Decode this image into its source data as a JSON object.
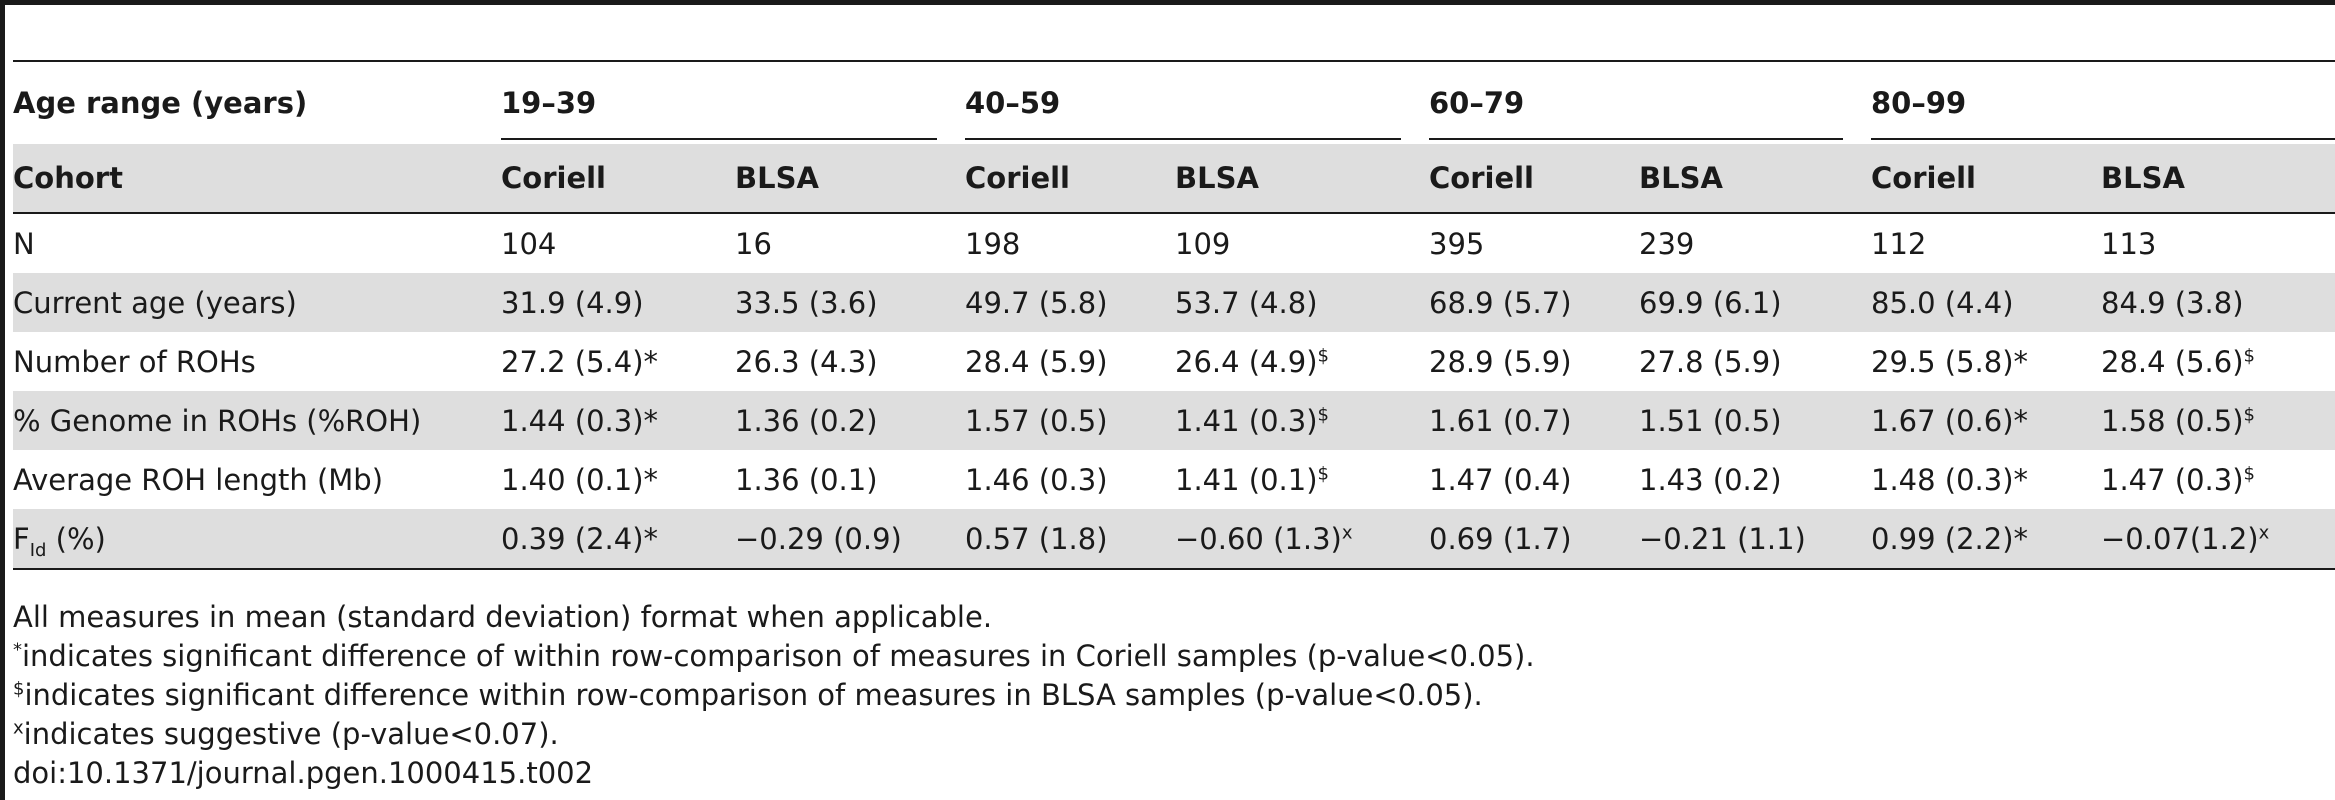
{
  "header": {
    "age_label": "Age range (years)",
    "age_groups": [
      "19–39",
      "40–59",
      "60–79",
      "80–99"
    ],
    "cohort_label": "Cohort",
    "cohorts": [
      "Coriell",
      "BLSA",
      "Coriell",
      "BLSA",
      "Coriell",
      "BLSA",
      "Coriell",
      "BLSA"
    ]
  },
  "rows": [
    {
      "label": "N",
      "sub": "",
      "label_tail": "",
      "cells": [
        {
          "v": "104",
          "m": ""
        },
        {
          "v": "16",
          "m": ""
        },
        {
          "v": "198",
          "m": ""
        },
        {
          "v": "109",
          "m": ""
        },
        {
          "v": "395",
          "m": ""
        },
        {
          "v": "239",
          "m": ""
        },
        {
          "v": "112",
          "m": ""
        },
        {
          "v": "113",
          "m": ""
        }
      ]
    },
    {
      "label": "Current age (years)",
      "sub": "",
      "label_tail": "",
      "cells": [
        {
          "v": "31.9 (4.9)",
          "m": ""
        },
        {
          "v": "33.5 (3.6)",
          "m": ""
        },
        {
          "v": "49.7 (5.8)",
          "m": ""
        },
        {
          "v": "53.7 (4.8)",
          "m": ""
        },
        {
          "v": "68.9 (5.7)",
          "m": ""
        },
        {
          "v": "69.9 (6.1)",
          "m": ""
        },
        {
          "v": "85.0 (4.4)",
          "m": ""
        },
        {
          "v": "84.9 (3.8)",
          "m": ""
        }
      ]
    },
    {
      "label": "Number of ROHs",
      "sub": "",
      "label_tail": "",
      "cells": [
        {
          "v": "27.2 (5.4)*",
          "m": ""
        },
        {
          "v": "26.3 (4.3)",
          "m": ""
        },
        {
          "v": "28.4 (5.9)",
          "m": ""
        },
        {
          "v": "26.4 (4.9)",
          "m": "$"
        },
        {
          "v": "28.9 (5.9)",
          "m": ""
        },
        {
          "v": "27.8 (5.9)",
          "m": ""
        },
        {
          "v": "29.5 (5.8)*",
          "m": ""
        },
        {
          "v": "28.4 (5.6)",
          "m": "$"
        }
      ]
    },
    {
      "label": "% Genome in ROHs (%ROH)",
      "sub": "",
      "label_tail": "",
      "cells": [
        {
          "v": "1.44 (0.3)*",
          "m": ""
        },
        {
          "v": "1.36 (0.2)",
          "m": ""
        },
        {
          "v": "1.57 (0.5)",
          "m": ""
        },
        {
          "v": "1.41 (0.3)",
          "m": "$"
        },
        {
          "v": "1.61 (0.7)",
          "m": ""
        },
        {
          "v": "1.51 (0.5)",
          "m": ""
        },
        {
          "v": "1.67 (0.6)*",
          "m": ""
        },
        {
          "v": "1.58 (0.5)",
          "m": "$"
        }
      ]
    },
    {
      "label": "Average ROH length (Mb)",
      "sub": "",
      "label_tail": "",
      "cells": [
        {
          "v": "1.40 (0.1)*",
          "m": ""
        },
        {
          "v": "1.36 (0.1)",
          "m": ""
        },
        {
          "v": "1.46 (0.3)",
          "m": ""
        },
        {
          "v": "1.41 (0.1)",
          "m": "$"
        },
        {
          "v": "1.47 (0.4)",
          "m": ""
        },
        {
          "v": "1.43 (0.2)",
          "m": ""
        },
        {
          "v": "1.48 (0.3)*",
          "m": ""
        },
        {
          "v": "1.47 (0.3)",
          "m": "$"
        }
      ]
    },
    {
      "label": "F",
      "sub": "Id",
      "label_tail": " (%)",
      "cells": [
        {
          "v": "0.39 (2.4)*",
          "m": ""
        },
        {
          "v": "−0.29 (0.9)",
          "m": ""
        },
        {
          "v": "0.57 (1.8)",
          "m": ""
        },
        {
          "v": "−0.60 (1.3)",
          "m": "x"
        },
        {
          "v": "0.69 (1.7)",
          "m": ""
        },
        {
          "v": "−0.21 (1.1)",
          "m": ""
        },
        {
          "v": "0.99 (2.2)*",
          "m": ""
        },
        {
          "v": "−0.07(1.2)",
          "m": "x"
        }
      ]
    }
  ],
  "footnotes": [
    {
      "mark": "",
      "text": "All measures in mean (standard deviation) format when applicable."
    },
    {
      "mark": "*",
      "text": "indicates significant difference of within row-comparison of measures in Coriell samples (p-value<0.05)."
    },
    {
      "mark": "$",
      "text": "indicates significant difference within row-comparison of measures in BLSA samples (p-value<0.05)."
    },
    {
      "mark": "x",
      "text": "indicates suggestive (p-value<0.07)."
    },
    {
      "mark": "",
      "text": "doi:10.1371/journal.pgen.1000415.t002"
    }
  ]
}
